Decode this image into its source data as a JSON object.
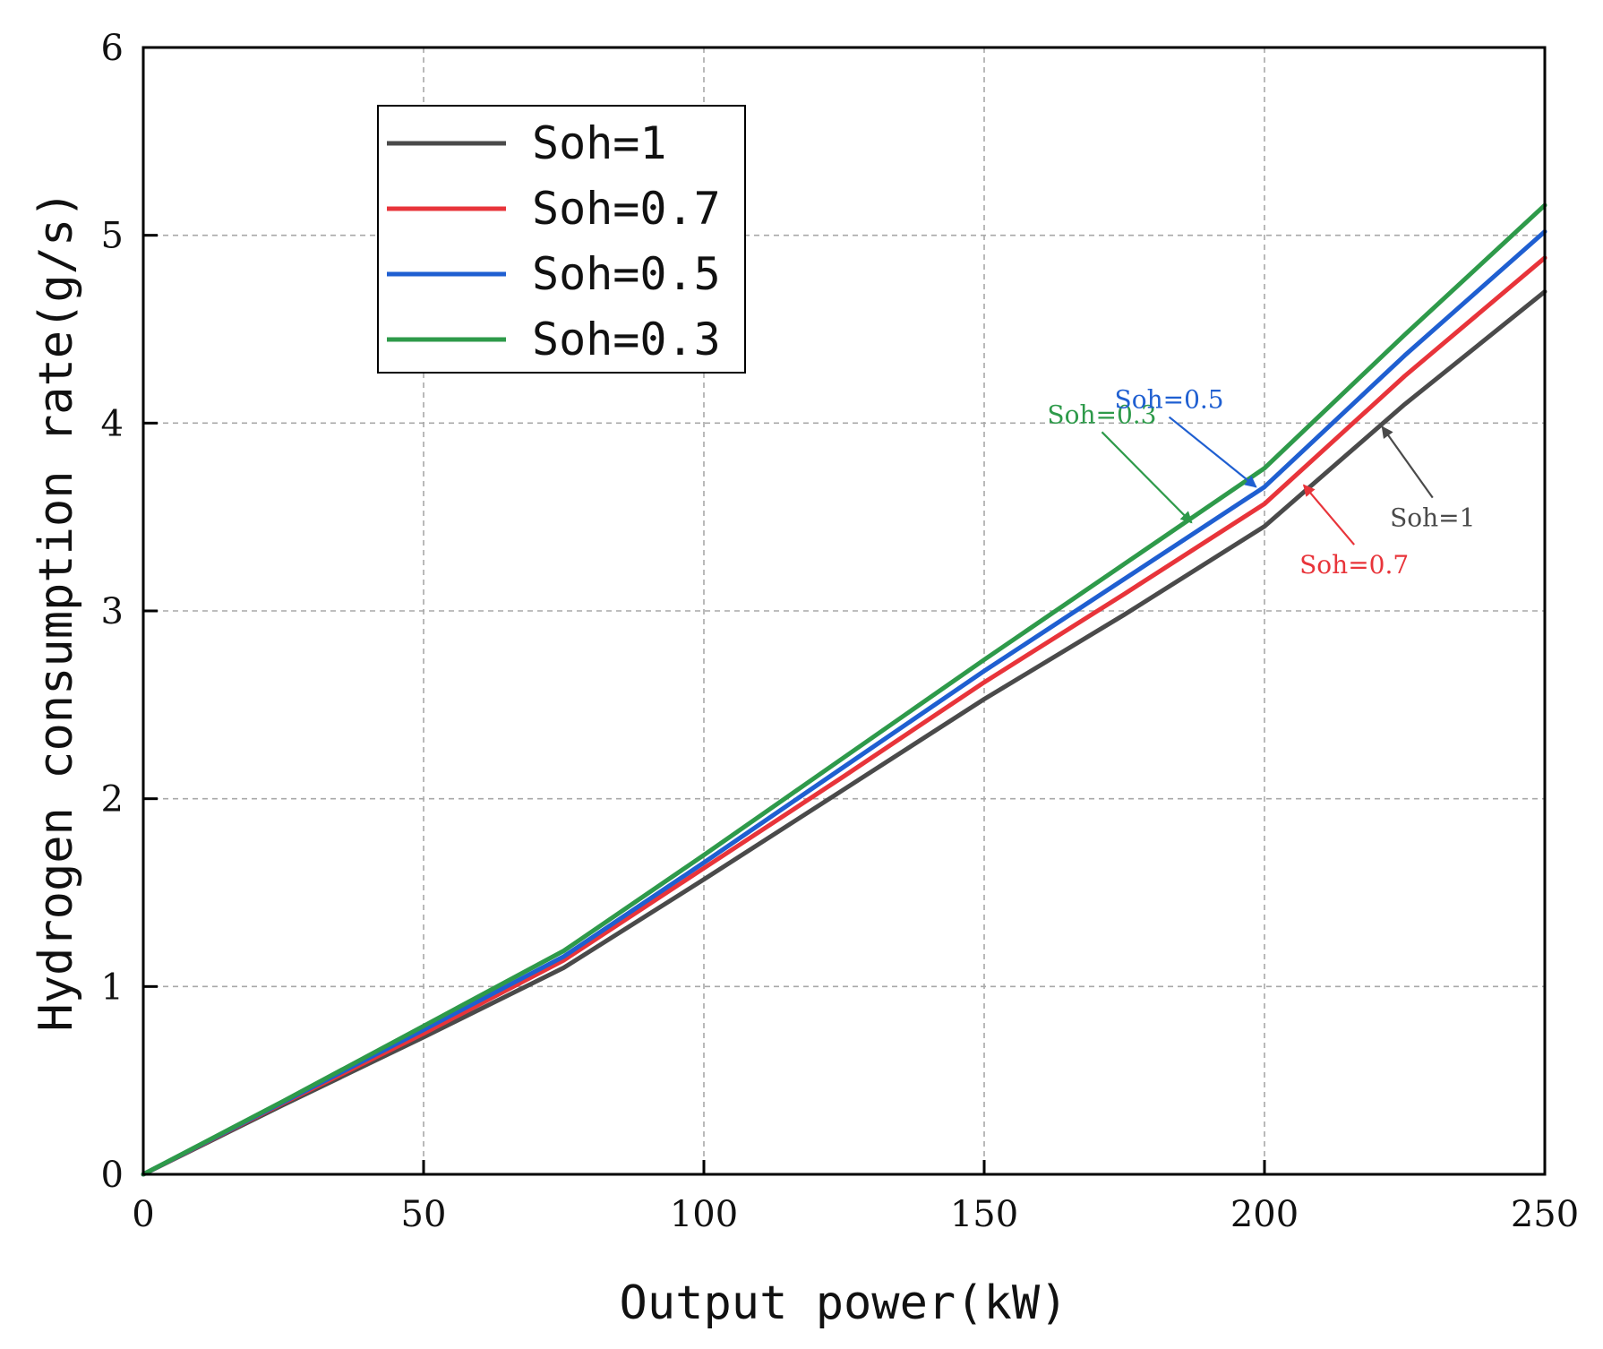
{
  "chart_data": {
    "type": "line",
    "title": "",
    "xlabel": "Output power(kW)",
    "ylabel": "Hydrogen consumption rate(g/s)",
    "xlim": [
      0,
      250
    ],
    "ylim": [
      0,
      6
    ],
    "xticks": [
      "0",
      "50",
      "100",
      "150",
      "200",
      "250"
    ],
    "yticks": [
      "0",
      "1",
      "2",
      "3",
      "4",
      "5",
      "6"
    ],
    "grid": true,
    "legend_position": "top-left",
    "series": [
      {
        "name": "Soh=1",
        "color": "#4a4a4a",
        "x": [
          0,
          25,
          50,
          75,
          100,
          125,
          150,
          175,
          200,
          225,
          250
        ],
        "y": [
          0,
          0.37,
          0.73,
          1.1,
          1.57,
          2.05,
          2.53,
          2.98,
          3.45,
          4.1,
          4.7
        ]
      },
      {
        "name": "Soh=0.7",
        "color": "#e8343a",
        "x": [
          0,
          25,
          50,
          75,
          100,
          125,
          150,
          175,
          200,
          225,
          250
        ],
        "y": [
          0,
          0.38,
          0.75,
          1.14,
          1.63,
          2.12,
          2.62,
          3.09,
          3.57,
          4.25,
          4.88
        ]
      },
      {
        "name": "Soh=0.5",
        "color": "#1f5fd1",
        "x": [
          0,
          25,
          50,
          75,
          100,
          125,
          150,
          175,
          200,
          225,
          250
        ],
        "y": [
          0,
          0.385,
          0.77,
          1.16,
          1.66,
          2.17,
          2.68,
          3.17,
          3.66,
          4.36,
          5.02
        ]
      },
      {
        "name": "Soh=0.3",
        "color": "#2e9a4a",
        "x": [
          0,
          25,
          50,
          75,
          100,
          125,
          150,
          175,
          200,
          225,
          250
        ],
        "y": [
          0,
          0.39,
          0.79,
          1.19,
          1.7,
          2.22,
          2.74,
          3.25,
          3.76,
          4.47,
          5.16
        ]
      }
    ],
    "annotations": [
      {
        "text": "Soh=0.3",
        "color": "#2e9a4a",
        "label_x": 171,
        "label_y": 4.0,
        "arrow_to": [
          187,
          3.47
        ]
      },
      {
        "text": "Soh=0.5",
        "color": "#1f5fd1",
        "label_x": 183,
        "label_y": 4.08,
        "arrow_to": [
          198.5,
          3.66
        ]
      },
      {
        "text": "Soh=1",
        "color": "#4a4a4a",
        "label_x": 230,
        "label_y": 3.45,
        "arrow_to": [
          221,
          3.98
        ]
      },
      {
        "text": "Soh=0.7",
        "color": "#e8343a",
        "label_x": 216,
        "label_y": 3.2,
        "arrow_to": [
          207,
          3.67
        ]
      }
    ]
  }
}
